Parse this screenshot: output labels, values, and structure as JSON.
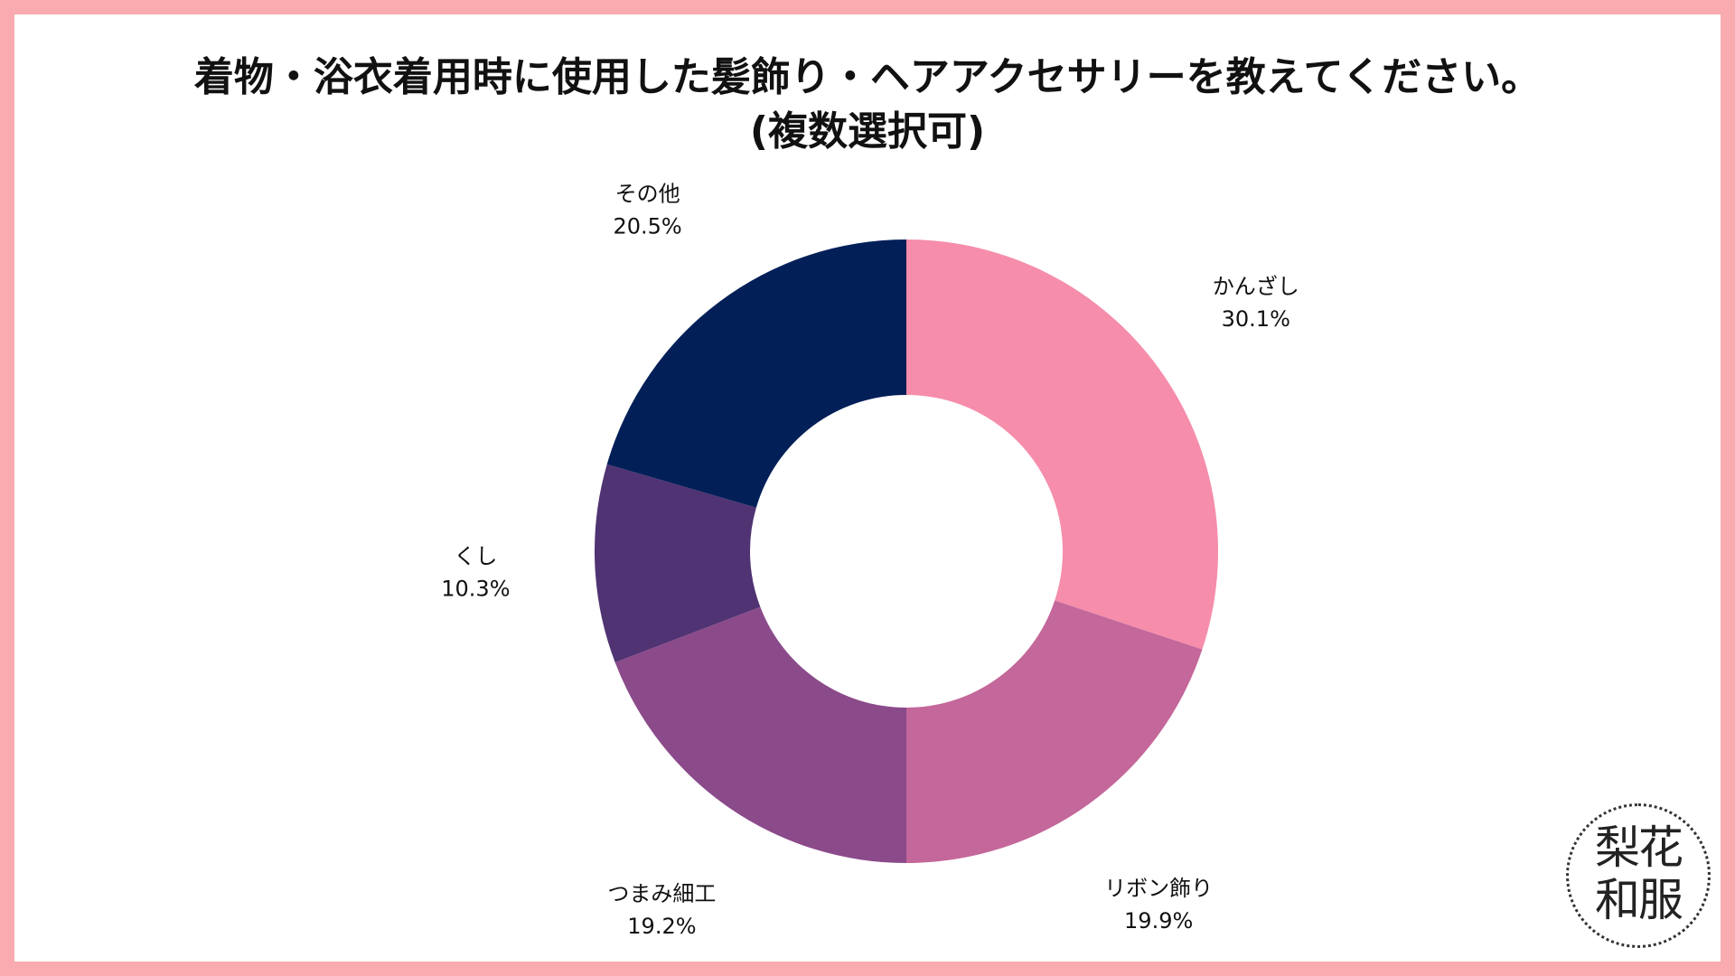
{
  "title": {
    "line1": "着物・浴衣着用時に使用した髪飾り・ヘアアクセサリーを教えてください。",
    "line2": "(複数選択可)"
  },
  "colors": {
    "frame": "#f9abb0",
    "slices": [
      "#f58dab",
      "#c4679a",
      "#8b4a8a",
      "#503372",
      "#021f58"
    ]
  },
  "chart_data": {
    "type": "pie",
    "donut": true,
    "title": "着物・浴衣着用時に使用した髪飾り・ヘアアクセサリーを教えてください。(複数選択可)",
    "unit": "%",
    "categories": [
      "かんざし",
      "リボン飾り",
      "つまみ細工",
      "くし",
      "その他"
    ],
    "values": [
      30.1,
      19.9,
      19.2,
      10.3,
      20.5
    ],
    "value_labels": [
      "30.1%",
      "19.9%",
      "19.2%",
      "10.3%",
      "20.5%"
    ],
    "start_angle": "12 o'clock",
    "direction": "clockwise",
    "legend": "none"
  },
  "logo": {
    "line1": "梨花",
    "line2": "和服"
  }
}
